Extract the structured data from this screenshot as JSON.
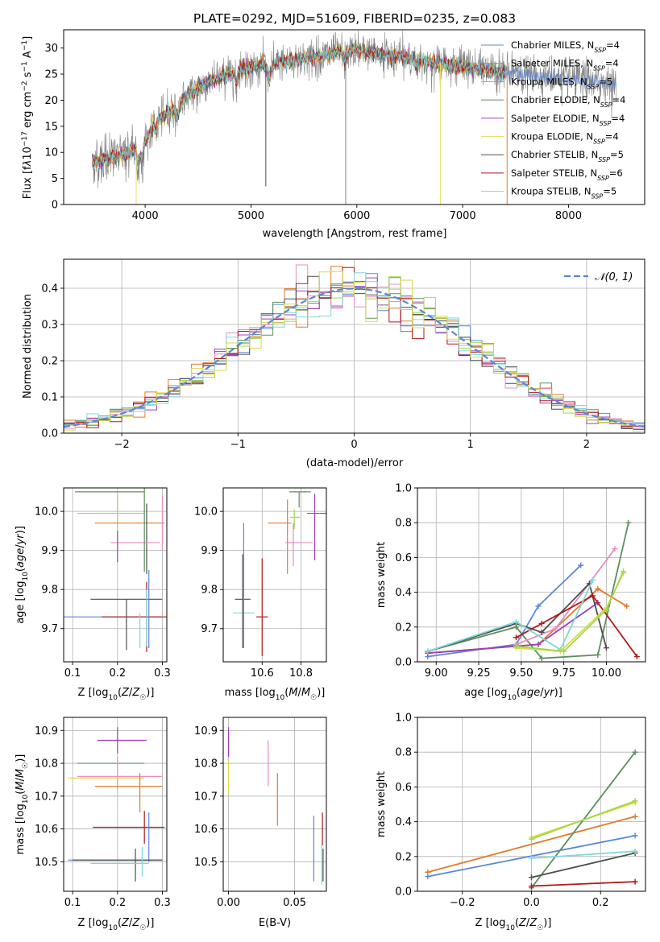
{
  "colors": [
    "#5b86d6",
    "#e07b2a",
    "#5e8d5f",
    "#9b3fc0",
    "#e88cc0",
    "#4d4d4d",
    "#9ed94a",
    "#b01818",
    "#7fd8d8",
    "#d9d94a"
  ],
  "spectrum": {
    "title": "PLATE=0292, MJD=51609, FIBERID=0235, z=0.083",
    "xlabel": "wavelength [Angstrom, rest frame]",
    "ylabel": "Flux [fλ10⁻¹⁷ erg cm⁻² s⁻¹ A⁻¹]",
    "xticks": [
      "4000",
      "5000",
      "6000",
      "7000",
      "8000"
    ],
    "yticks": [
      "0",
      "5",
      "10",
      "15",
      "20",
      "25",
      "30"
    ],
    "legend": [
      {
        "label": "Chabrier MILES, N",
        "sub": "SSP",
        "tail": "=4",
        "color": "#5b86d6"
      },
      {
        "label": "Salpeter MILES, N",
        "sub": "SSP",
        "tail": "=4",
        "color": "#e07b2a"
      },
      {
        "label": "Kroupa MILES, N",
        "sub": "SSP",
        "tail": "=5",
        "color": "#c49a3a"
      },
      {
        "label": "Chabrier ELODIE, N",
        "sub": "SSP",
        "tail": "=4",
        "color": "#5e8d5f"
      },
      {
        "label": "Salpeter ELODIE, N",
        "sub": "SSP",
        "tail": "=4",
        "color": "#9b3fc0"
      },
      {
        "label": "Kroupa ELODIE, N",
        "sub": "SSP",
        "tail": "=4",
        "color": "#e8e070"
      },
      {
        "label": "Chabrier STELIB, N",
        "sub": "SSP",
        "tail": "=5",
        "color": "#4d4d4d"
      },
      {
        "label": "Salpeter STELIB, N",
        "sub": "SSP",
        "tail": "=6",
        "color": "#b01818"
      },
      {
        "label": "Kroupa STELIB, N",
        "sub": "SSP",
        "tail": "=5",
        "color": "#7fd8d8"
      }
    ]
  },
  "residuals": {
    "xlabel": "(data-model)/error",
    "ylabel": "Normed distribution",
    "xticks": [
      "−2",
      "−1",
      "0",
      "1",
      "2"
    ],
    "yticks": [
      "0.0",
      "0.1",
      "0.2",
      "0.3",
      "0.4"
    ],
    "legend": "𝒩(0, 1)"
  },
  "panels": {
    "p3": {
      "xlabel": "Z [log₁₀(Z/Z☉)]",
      "ylabel": "age  [log₁₀(age/yr)]",
      "xticks": [
        "0.1",
        "0.2",
        "0.3"
      ],
      "yticks": [
        "9.7",
        "9.8",
        "9.9",
        "10.0"
      ]
    },
    "p4": {
      "xlabel": "mass [log₁₀(M/M☉)]",
      "xticks": [
        "10.6",
        "10.8"
      ],
      "yticks": [
        "9.7",
        "9.8",
        "9.9",
        "10.0"
      ]
    },
    "p5": {
      "xlabel": "age  [log₁₀(age/yr)]",
      "ylabel": "mass weight",
      "xticks": [
        "9.00",
        "9.25",
        "9.50",
        "9.75",
        "10.00"
      ],
      "yticks": [
        "0.0",
        "0.2",
        "0.4",
        "0.6",
        "0.8",
        "1.0"
      ]
    },
    "p6": {
      "xlabel": "Z [log₁₀(Z/Z☉)]",
      "ylabel": "mass [log₁₀(M/M☉)]",
      "xticks": [
        "0.1",
        "0.2",
        "0.3"
      ],
      "yticks": [
        "10.5",
        "10.6",
        "10.7",
        "10.8",
        "10.9"
      ]
    },
    "p7": {
      "xlabel": "E(B-V)",
      "xticks": [
        "0.00",
        "0.05"
      ],
      "yticks": [
        "10.5",
        "10.6",
        "10.7",
        "10.8",
        "10.9"
      ]
    },
    "p8": {
      "xlabel": "Z [log₁₀(Z/Z☉)]",
      "ylabel": "mass weight",
      "xticks": [
        "−0.2",
        "0.0",
        "0.2"
      ],
      "yticks": [
        "0.0",
        "0.2",
        "0.4",
        "0.6",
        "0.8",
        "1.0"
      ]
    }
  },
  "chart_data": [
    {
      "type": "line",
      "id": "spectrum",
      "xlim": [
        3230,
        8720
      ],
      "ylim": [
        0,
        33.5
      ],
      "grid": false,
      "legend_position": "right",
      "continuum_anchors": [
        [
          3500,
          8
        ],
        [
          3700,
          9
        ],
        [
          3900,
          10.5
        ],
        [
          4000,
          12
        ],
        [
          4100,
          16
        ],
        [
          4300,
          19
        ],
        [
          4400,
          21
        ],
        [
          4600,
          23.5
        ],
        [
          4900,
          26
        ],
        [
          5200,
          27
        ],
        [
          5500,
          28
        ],
        [
          5800,
          29
        ],
        [
          6000,
          29.5
        ],
        [
          6500,
          28
        ],
        [
          7000,
          26.5
        ],
        [
          7500,
          25
        ],
        [
          8000,
          24
        ],
        [
          8300,
          23.5
        ],
        [
          8450,
          23
        ]
      ]
    },
    {
      "type": "histogram",
      "id": "residuals",
      "xlim": [
        -2.5,
        2.5
      ],
      "ylim": [
        0,
        0.48
      ],
      "grid": true,
      "legend_position": "top-right",
      "bin_width": 0.1,
      "normal_mu": 0,
      "normal_sigma": 1
    },
    {
      "type": "scatter",
      "id": "p3",
      "xlim": [
        0.08,
        0.31
      ],
      "ylim": [
        9.615,
        10.06
      ],
      "grid": true,
      "points": [
        {
          "x": 0.15,
          "y": 9.73,
          "xerr": [
            0.148,
            0.148
          ],
          "yerr": [
            0,
            0
          ],
          "color": "#5b86d6"
        },
        {
          "x": 0.265,
          "y": 9.73,
          "xerr": [
            0.1,
            0.1
          ],
          "yerr": [
            0.09,
            0.09
          ],
          "color": "#b01818"
        },
        {
          "x": 0.22,
          "y": 9.775,
          "xerr": [
            0.08,
            0.08
          ],
          "yerr": [
            0.13,
            0
          ],
          "color": "#4d4d4d"
        },
        {
          "x": 0.25,
          "y": 9.74,
          "xerr": [
            0,
            0
          ],
          "yerr": [
            0.09,
            0
          ],
          "color": "#7fd8d8"
        },
        {
          "x": 0.265,
          "y": 9.73,
          "xerr": [
            0,
            0
          ],
          "yerr": [
            0.075,
            0.07
          ],
          "color": "#7fd8d8"
        },
        {
          "x": 0.27,
          "y": 9.75,
          "xerr": [
            0,
            0
          ],
          "yerr": [
            0.1,
            0.1
          ],
          "color": "#5b86d6"
        },
        {
          "x": 0.2,
          "y": 10.05,
          "xerr": [
            0.095,
            0.06
          ],
          "yerr": [
            0,
            0
          ],
          "color": "#5e8d5f"
        },
        {
          "x": 0.2,
          "y": 9.995,
          "xerr": [
            0.09,
            0.06
          ],
          "yerr": [
            0.05,
            0.05
          ],
          "color": "#9ed94a"
        },
        {
          "x": 0.225,
          "y": 9.97,
          "xerr": [
            0.075,
            0.08
          ],
          "yerr": [
            0,
            0
          ],
          "color": "#e07b2a"
        },
        {
          "x": 0.265,
          "y": 9.92,
          "xerr": [
            0,
            0
          ],
          "yerr": [
            0.08,
            0.1
          ],
          "color": "#4d4d4d"
        },
        {
          "x": 0.255,
          "y": 9.92,
          "xerr": [
            0.07,
            0.04
          ],
          "yerr": [
            0,
            0
          ],
          "color": "#e88cc0"
        },
        {
          "x": 0.2,
          "y": 9.91,
          "xerr": [
            0,
            0
          ],
          "yerr": [
            0.04,
            0.04
          ],
          "color": "#9b3fc0"
        },
        {
          "x": 0.3,
          "y": 9.97,
          "xerr": [
            0,
            0
          ],
          "yerr": [
            0.07,
            0.07
          ],
          "color": "#e88cc0"
        },
        {
          "x": 0.26,
          "y": 10.045,
          "xerr": [
            0,
            0
          ],
          "yerr": [
            0.2,
            0.03
          ],
          "color": "#5e8d5f"
        }
      ]
    },
    {
      "type": "scatter",
      "id": "p4",
      "xlim": [
        10.4,
        10.93
      ],
      "ylim": [
        9.615,
        10.06
      ],
      "grid": true,
      "points": [
        {
          "x": 10.5,
          "y": 9.74,
          "xerr": [
            0.05,
            0.06
          ],
          "yerr": [
            0,
            0
          ],
          "color": "#7fd8d8"
        },
        {
          "x": 10.5,
          "y": 9.74,
          "xerr": [
            0,
            0
          ],
          "yerr": [
            0.09,
            0.15
          ],
          "color": "#4d4d4d"
        },
        {
          "x": 10.5,
          "y": 9.775,
          "xerr": [
            0.04,
            0.04
          ],
          "yerr": [
            0,
            0
          ],
          "color": "#4d4d4d"
        },
        {
          "x": 10.505,
          "y": 9.8,
          "xerr": [
            0,
            0
          ],
          "yerr": [
            0.15,
            0.17
          ],
          "color": "#5b86d6"
        },
        {
          "x": 10.6,
          "y": 9.73,
          "xerr": [
            0.03,
            0.03
          ],
          "yerr": [
            0.1,
            0.15
          ],
          "color": "#b01818"
        },
        {
          "x": 10.765,
          "y": 9.985,
          "xerr": [
            0.02,
            0.03
          ],
          "yerr": [
            0.03,
            0.02
          ],
          "color": "#9ed94a"
        },
        {
          "x": 10.79,
          "y": 10.05,
          "xerr": [
            0.05,
            0.06
          ],
          "yerr": [
            0.04,
            0
          ],
          "color": "#5e8d5f"
        },
        {
          "x": 10.73,
          "y": 9.97,
          "xerr": [
            0.1,
            0.02
          ],
          "yerr": [
            0.13,
            0.06
          ],
          "color": "#e07b2a"
        },
        {
          "x": 10.76,
          "y": 9.92,
          "xerr": [
            0.04,
            0.1
          ],
          "yerr": [
            0.06,
            0.05
          ],
          "color": "#e88cc0"
        },
        {
          "x": 10.87,
          "y": 9.995,
          "xerr": [
            0.04,
            0.06
          ],
          "yerr": [
            0.12,
            0.05
          ],
          "color": "#9b3fc0"
        }
      ]
    },
    {
      "type": "line",
      "id": "p5",
      "xlim": [
        8.89,
        10.23
      ],
      "ylim": [
        0,
        1.0
      ],
      "grid": true,
      "series": [
        {
          "color": "#5b86d6",
          "x": [
            8.95,
            9.47,
            9.6,
            9.85
          ],
          "y": [
            0.03,
            0.1,
            0.32,
            0.555
          ]
        },
        {
          "color": "#e07b2a",
          "x": [
            8.95,
            9.47,
            9.6,
            9.95,
            10.12
          ],
          "y": [
            0.05,
            0.09,
            0.1,
            0.42,
            0.32
          ]
        },
        {
          "color": "#5e8d5f",
          "x": [
            8.95,
            9.47,
            9.62,
            9.95,
            10.13
          ],
          "y": [
            0.06,
            0.2,
            0.02,
            0.04,
            0.8
          ]
        },
        {
          "color": "#9b3fc0",
          "x": [
            8.95,
            9.47,
            9.6,
            9.95
          ],
          "y": [
            0.05,
            0.09,
            0.1,
            0.34
          ]
        },
        {
          "color": "#e88cc0",
          "x": [
            9.47,
            9.7,
            10.05
          ],
          "y": [
            0.1,
            0.19,
            0.65
          ]
        },
        {
          "color": "#4d4d4d",
          "x": [
            8.95,
            9.47,
            9.62,
            9.9,
            10.0
          ],
          "y": [
            0.06,
            0.22,
            0.17,
            0.45,
            0.08
          ]
        },
        {
          "color": "#b01818",
          "x": [
            9.47,
            9.62,
            9.92,
            10.18
          ],
          "y": [
            0.14,
            0.22,
            0.38,
            0.03
          ]
        },
        {
          "color": "#7fd8d8",
          "x": [
            8.95,
            9.47,
            9.73,
            9.92
          ],
          "y": [
            0.06,
            0.23,
            0.07,
            0.47
          ]
        },
        {
          "color": "#d9d94a",
          "x": [
            9.47,
            9.73,
            10.0,
            10.1
          ],
          "y": [
            0.08,
            0.06,
            0.31,
            0.51
          ]
        },
        {
          "color": "#9ed94a",
          "x": [
            9.47,
            9.75,
            10.0,
            10.1
          ],
          "y": [
            0.09,
            0.06,
            0.3,
            0.52
          ]
        }
      ]
    },
    {
      "type": "scatter",
      "id": "p6",
      "xlim": [
        0.08,
        0.31
      ],
      "ylim": [
        10.41,
        10.94
      ],
      "grid": true,
      "points": [
        {
          "x": 0.2,
          "y": 10.87,
          "xerr": [
            0.045,
            0.065
          ],
          "yerr": [
            0.04,
            0.04
          ],
          "color": "#9b3fc0"
        },
        {
          "x": 0.26,
          "y": 10.8,
          "xerr": [
            0.15,
            0.0
          ],
          "yerr": [
            0,
            0
          ],
          "color": "#5e8d5f"
        },
        {
          "x": 0.2,
          "y": 10.76,
          "xerr": [
            0.09,
            0.1
          ],
          "yerr": [
            0.04,
            0.06
          ],
          "color": "#e88cc0"
        },
        {
          "x": 0.2,
          "y": 10.755,
          "xerr": [
            0.11,
            0.06
          ],
          "yerr": [
            0,
            0
          ],
          "color": "#d9d94a"
        },
        {
          "x": 0.25,
          "y": 10.73,
          "xerr": [
            0.1,
            0.05
          ],
          "yerr": [
            0.08,
            0.04
          ],
          "color": "#e07b2a"
        },
        {
          "x": 0.26,
          "y": 10.605,
          "xerr": [
            0.115,
            0.045
          ],
          "yerr": [
            0.05,
            0.05
          ],
          "color": "#b01818"
        },
        {
          "x": 0.27,
          "y": 10.6,
          "xerr": [
            0,
            0
          ],
          "yerr": [
            0.1,
            0.05
          ],
          "color": "#5b86d6"
        },
        {
          "x": 0.17,
          "y": 10.505,
          "xerr": [
            0.08,
            0.13
          ],
          "yerr": [
            0,
            0
          ],
          "color": "#5b86d6"
        },
        {
          "x": 0.22,
          "y": 10.505,
          "xerr": [
            0.12,
            0.08
          ],
          "yerr": [
            0,
            0
          ],
          "color": "#4d4d4d"
        },
        {
          "x": 0.24,
          "y": 10.5,
          "xerr": [
            0,
            0
          ],
          "yerr": [
            0.06,
            0.04
          ],
          "color": "#4d4d4d"
        },
        {
          "x": 0.21,
          "y": 10.495,
          "xerr": [
            0.07,
            0.06
          ],
          "yerr": [
            0,
            0
          ],
          "color": "#7fd8d8"
        },
        {
          "x": 0.255,
          "y": 10.505,
          "xerr": [
            0,
            0
          ],
          "yerr": [
            0.05,
            0.04
          ],
          "color": "#7fd8d8"
        }
      ]
    },
    {
      "type": "scatter",
      "id": "p7",
      "xlim": [
        -0.004,
        0.074
      ],
      "ylim": [
        10.41,
        10.94
      ],
      "grid": true,
      "points": [
        {
          "x": 0.0,
          "y": 10.87,
          "yerr": [
            0.05,
            0.04
          ],
          "color": "#9b3fc0"
        },
        {
          "x": 0.0,
          "y": 10.77,
          "yerr": [
            0.06,
            0.04
          ],
          "color": "#d9d94a"
        },
        {
          "x": 0.03,
          "y": 10.8,
          "yerr": [
            0.07,
            0.07
          ],
          "color": "#e88cc0"
        },
        {
          "x": 0.037,
          "y": 10.69,
          "yerr": [
            0.08,
            0.08
          ],
          "color": "#e07b2a"
        },
        {
          "x": 0.071,
          "y": 10.6,
          "yerr": [
            0.05,
            0.05
          ],
          "color": "#b01818"
        },
        {
          "x": 0.0645,
          "y": 10.54,
          "yerr": [
            0.1,
            0.1
          ],
          "color": "#5b86d6"
        },
        {
          "x": 0.0705,
          "y": 10.49,
          "yerr": [
            0.06,
            0.06
          ],
          "color": "#7fd8d8"
        },
        {
          "x": 0.0715,
          "y": 10.49,
          "yerr": [
            0.05,
            0.05
          ],
          "color": "#4d4d4d"
        }
      ]
    },
    {
      "type": "line",
      "id": "p8",
      "xlim": [
        -0.33,
        0.33
      ],
      "ylim": [
        0,
        1.0
      ],
      "grid": true,
      "series": [
        {
          "color": "#5b86d6",
          "x": [
            -0.3,
            0.3
          ],
          "y": [
            0.085,
            0.32
          ]
        },
        {
          "color": "#e07b2a",
          "x": [
            -0.3,
            0.3
          ],
          "y": [
            0.11,
            0.43
          ]
        },
        {
          "color": "#5e8d5f",
          "x": [
            0.0,
            0.3
          ],
          "y": [
            0.02,
            0.8
          ]
        },
        {
          "color": "#4d4d4d",
          "x": [
            0.0,
            0.3
          ],
          "y": [
            0.08,
            0.22
          ]
        },
        {
          "color": "#b01818",
          "x": [
            0.0,
            0.3
          ],
          "y": [
            0.03,
            0.055
          ]
        },
        {
          "color": "#7fd8d8",
          "x": [
            0.0,
            0.3
          ],
          "y": [
            0.19,
            0.23
          ]
        },
        {
          "color": "#d9d94a",
          "x": [
            0.0,
            0.3
          ],
          "y": [
            0.31,
            0.51
          ]
        },
        {
          "color": "#9ed94a",
          "x": [
            0.0,
            0.3
          ],
          "y": [
            0.3,
            0.52
          ]
        }
      ]
    }
  ]
}
